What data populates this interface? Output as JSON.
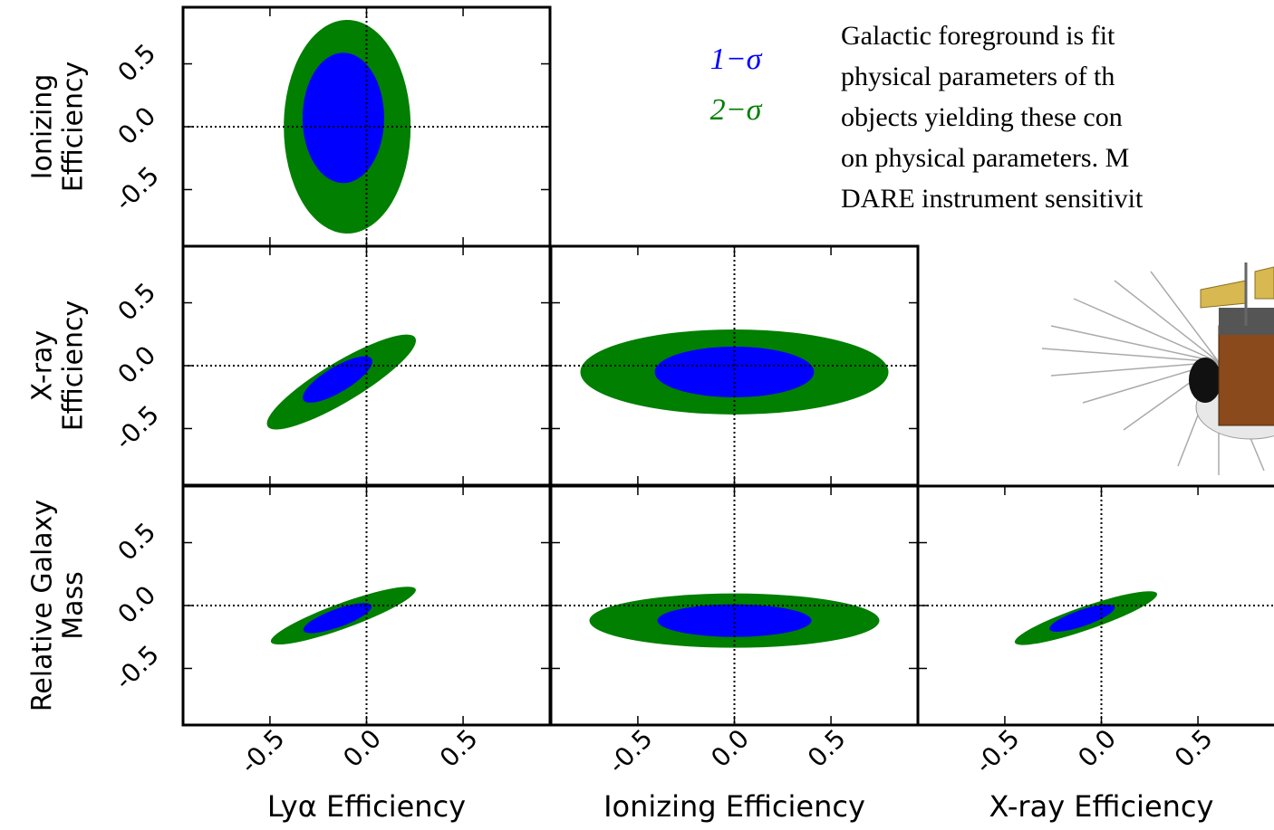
{
  "figure": {
    "lim": [
      -0.95,
      0.95
    ],
    "ticks": [
      -0.5,
      {
        "value": 0,
        "label": "0.0"
      },
      0.5
    ],
    "ylabels": [
      [
        "Ionizing",
        "Efficiency"
      ],
      [
        "X-ray",
        "Efficiency"
      ],
      [
        "Relative Galaxy",
        "Mass"
      ]
    ],
    "xlabels": [
      "Lyα Efficiency",
      "Ionizing Efficiency",
      "X-ray Efficiency"
    ],
    "legend": [
      {
        "label": "1−σ",
        "color": "#0000ff"
      },
      {
        "label": "2−σ",
        "color": "#007f00"
      }
    ]
  },
  "text": [
    "Galactic foreground is fit",
    "physical parameters of th",
    "objects yielding these con",
    "on physical parameters. M",
    "DARE instrument sensitivit"
  ]
}
